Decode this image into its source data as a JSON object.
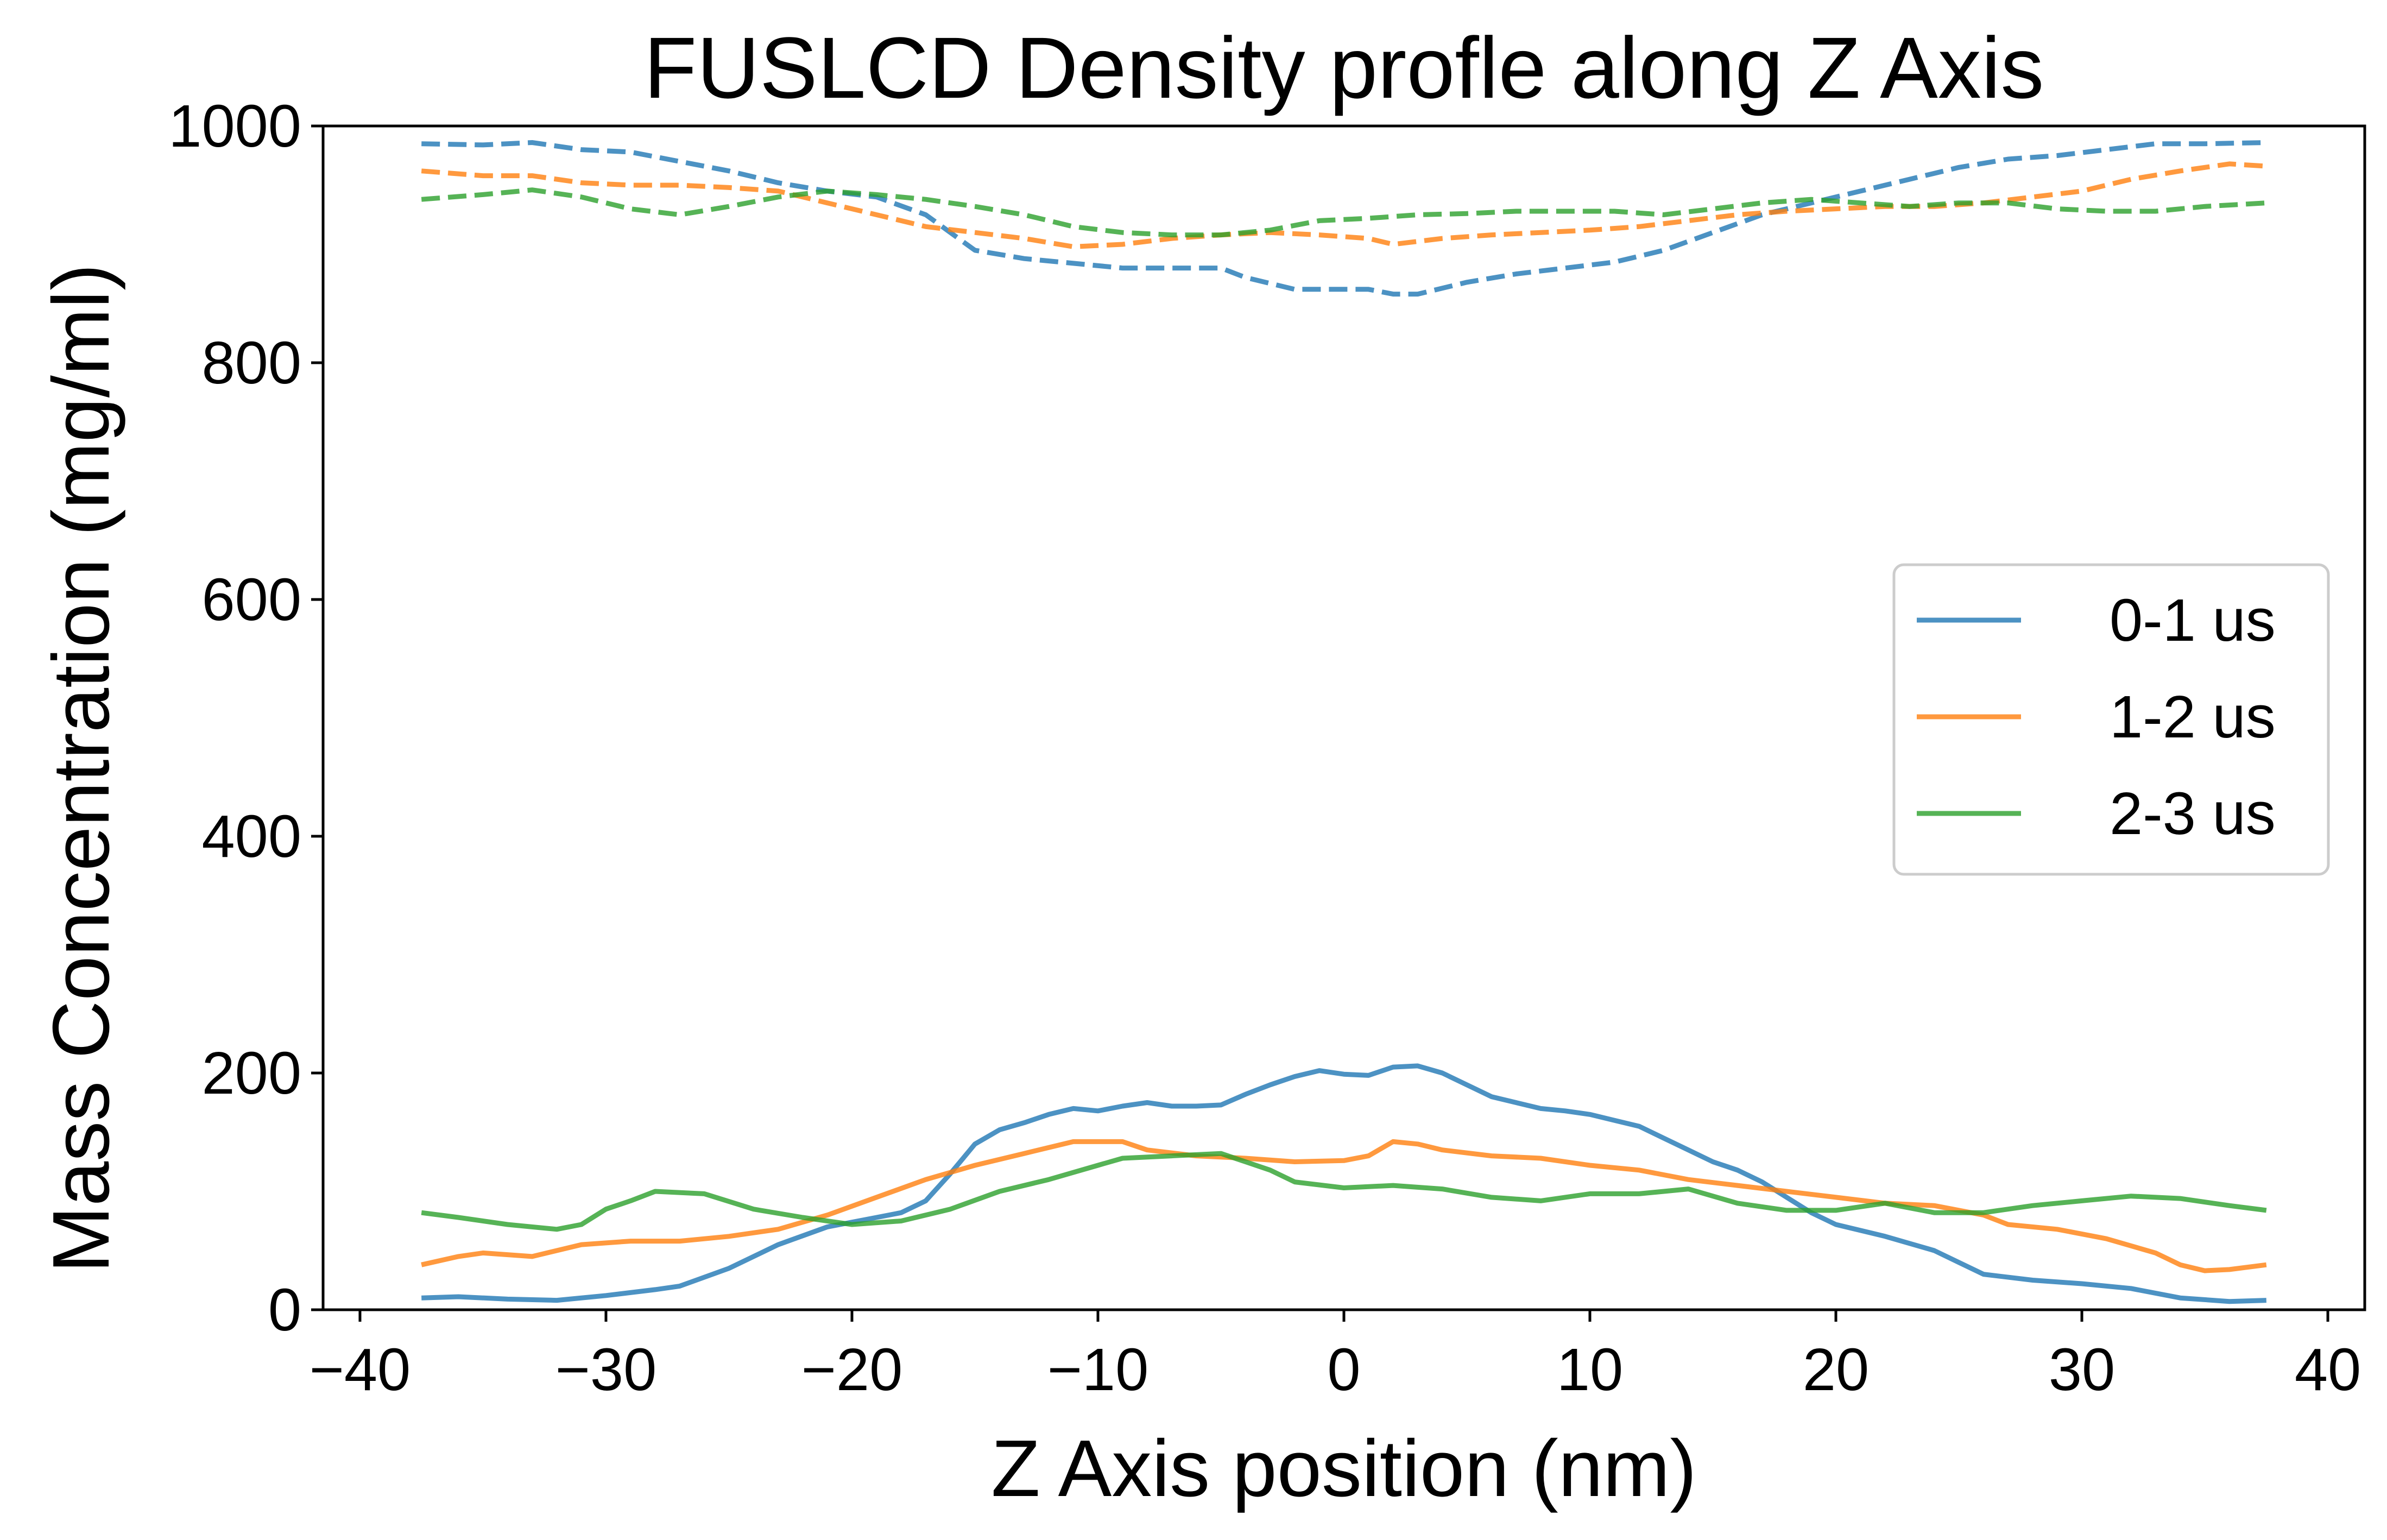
{
  "chart_data": {
    "type": "line",
    "title": "FUSLCD Density profle along Z Axis",
    "xlabel": "Z Axis position (nm)",
    "ylabel": "Mass Concentration (mg/ml)",
    "xlim": [
      -41.5,
      41.5
    ],
    "ylim": [
      0,
      1000
    ],
    "xticks": [
      -40,
      -30,
      -20,
      -10,
      0,
      10,
      20,
      30,
      40
    ],
    "yticks": [
      0,
      200,
      400,
      600,
      800,
      1000
    ],
    "grid": false,
    "legend": {
      "position": "center-right",
      "entries": [
        {
          "label": "0-1 us",
          "color": "#1f77b4"
        },
        {
          "label": "1-2 us",
          "color": "#ff7f0e"
        },
        {
          "label": "2-3 us",
          "color": "#2ca02c"
        }
      ]
    },
    "series": [
      {
        "name": "0-1 us",
        "style": "solid",
        "color": "#1f77b4",
        "points": [
          [
            -37.5,
            10
          ],
          [
            -36,
            11
          ],
          [
            -34,
            9
          ],
          [
            -32,
            8
          ],
          [
            -30,
            12
          ],
          [
            -28,
            17
          ],
          [
            -27,
            20
          ],
          [
            -25,
            35
          ],
          [
            -23,
            55
          ],
          [
            -21,
            70
          ],
          [
            -19,
            78
          ],
          [
            -18,
            82
          ],
          [
            -17,
            92
          ],
          [
            -16,
            115
          ],
          [
            -15,
            140
          ],
          [
            -14,
            152
          ],
          [
            -13,
            158
          ],
          [
            -12,
            165
          ],
          [
            -11,
            170
          ],
          [
            -10,
            168
          ],
          [
            -9,
            172
          ],
          [
            -8,
            175
          ],
          [
            -7,
            172
          ],
          [
            -6,
            172
          ],
          [
            -5,
            173
          ],
          [
            -4,
            182
          ],
          [
            -3,
            190
          ],
          [
            -2,
            197
          ],
          [
            -1,
            202
          ],
          [
            0,
            199
          ],
          [
            1,
            198
          ],
          [
            2,
            205
          ],
          [
            3,
            206
          ],
          [
            4,
            200
          ],
          [
            5,
            190
          ],
          [
            6,
            180
          ],
          [
            7,
            175
          ],
          [
            8,
            170
          ],
          [
            9,
            168
          ],
          [
            10,
            165
          ],
          [
            11,
            160
          ],
          [
            12,
            155
          ],
          [
            13,
            145
          ],
          [
            14,
            135
          ],
          [
            15,
            125
          ],
          [
            16,
            118
          ],
          [
            17,
            108
          ],
          [
            18,
            95
          ],
          [
            19,
            82
          ],
          [
            20,
            72
          ],
          [
            22,
            62
          ],
          [
            24,
            50
          ],
          [
            25,
            40
          ],
          [
            26,
            30
          ],
          [
            28,
            25
          ],
          [
            30,
            22
          ],
          [
            32,
            18
          ],
          [
            34,
            10
          ],
          [
            36,
            7
          ],
          [
            37.5,
            8
          ]
        ]
      },
      {
        "name": "1-2 us",
        "style": "solid",
        "color": "#ff7f0e",
        "points": [
          [
            -37.5,
            38
          ],
          [
            -36,
            45
          ],
          [
            -35,
            48
          ],
          [
            -33,
            45
          ],
          [
            -31,
            55
          ],
          [
            -29,
            58
          ],
          [
            -27,
            58
          ],
          [
            -25,
            62
          ],
          [
            -23,
            68
          ],
          [
            -21,
            80
          ],
          [
            -19,
            95
          ],
          [
            -17,
            110
          ],
          [
            -15,
            122
          ],
          [
            -13,
            132
          ],
          [
            -11,
            142
          ],
          [
            -9,
            142
          ],
          [
            -8,
            135
          ],
          [
            -6,
            130
          ],
          [
            -4,
            128
          ],
          [
            -2,
            125
          ],
          [
            0,
            126
          ],
          [
            1,
            130
          ],
          [
            2,
            142
          ],
          [
            3,
            140
          ],
          [
            4,
            135
          ],
          [
            6,
            130
          ],
          [
            8,
            128
          ],
          [
            10,
            122
          ],
          [
            12,
            118
          ],
          [
            14,
            110
          ],
          [
            16,
            105
          ],
          [
            18,
            100
          ],
          [
            20,
            95
          ],
          [
            22,
            90
          ],
          [
            24,
            88
          ],
          [
            26,
            80
          ],
          [
            27,
            72
          ],
          [
            29,
            68
          ],
          [
            31,
            60
          ],
          [
            33,
            48
          ],
          [
            34,
            38
          ],
          [
            35,
            33
          ],
          [
            36,
            34
          ],
          [
            37.5,
            38
          ]
        ]
      },
      {
        "name": "2-3 us",
        "style": "solid",
        "color": "#2ca02c",
        "points": [
          [
            -37.5,
            82
          ],
          [
            -36,
            78
          ],
          [
            -34,
            72
          ],
          [
            -32,
            68
          ],
          [
            -31,
            72
          ],
          [
            -30,
            85
          ],
          [
            -29,
            92
          ],
          [
            -28,
            100
          ],
          [
            -26,
            98
          ],
          [
            -24,
            85
          ],
          [
            -22,
            78
          ],
          [
            -20,
            72
          ],
          [
            -18,
            75
          ],
          [
            -16,
            85
          ],
          [
            -14,
            100
          ],
          [
            -12,
            110
          ],
          [
            -10,
            122
          ],
          [
            -9,
            128
          ],
          [
            -7,
            130
          ],
          [
            -5,
            132
          ],
          [
            -4,
            125
          ],
          [
            -3,
            118
          ],
          [
            -2,
            108
          ],
          [
            0,
            103
          ],
          [
            2,
            105
          ],
          [
            4,
            102
          ],
          [
            6,
            95
          ],
          [
            8,
            92
          ],
          [
            10,
            98
          ],
          [
            12,
            98
          ],
          [
            14,
            102
          ],
          [
            16,
            90
          ],
          [
            18,
            84
          ],
          [
            20,
            84
          ],
          [
            22,
            90
          ],
          [
            24,
            82
          ],
          [
            26,
            82
          ],
          [
            28,
            88
          ],
          [
            30,
            92
          ],
          [
            32,
            96
          ],
          [
            34,
            94
          ],
          [
            36,
            88
          ],
          [
            37.5,
            84
          ]
        ]
      },
      {
        "name": "",
        "style": "dashed",
        "color": "#1f77b4",
        "points": [
          [
            -37.5,
            985
          ],
          [
            -35,
            984
          ],
          [
            -33,
            986
          ],
          [
            -31,
            980
          ],
          [
            -29,
            978
          ],
          [
            -27,
            970
          ],
          [
            -25,
            962
          ],
          [
            -23,
            952
          ],
          [
            -21,
            945
          ],
          [
            -19,
            940
          ],
          [
            -17,
            925
          ],
          [
            -15,
            895
          ],
          [
            -13,
            888
          ],
          [
            -11,
            884
          ],
          [
            -9,
            880
          ],
          [
            -7,
            880
          ],
          [
            -5,
            880
          ],
          [
            -4,
            872
          ],
          [
            -2,
            862
          ],
          [
            0,
            862
          ],
          [
            1,
            862
          ],
          [
            2,
            858
          ],
          [
            3,
            858
          ],
          [
            5,
            868
          ],
          [
            7,
            875
          ],
          [
            9,
            880
          ],
          [
            11,
            885
          ],
          [
            13,
            895
          ],
          [
            15,
            910
          ],
          [
            17,
            925
          ],
          [
            19,
            935
          ],
          [
            21,
            945
          ],
          [
            23,
            955
          ],
          [
            25,
            965
          ],
          [
            27,
            972
          ],
          [
            29,
            975
          ],
          [
            31,
            980
          ],
          [
            33,
            985
          ],
          [
            35,
            985
          ],
          [
            37.5,
            986
          ]
        ]
      },
      {
        "name": "",
        "style": "dashed",
        "color": "#ff7f0e",
        "points": [
          [
            -37.5,
            962
          ],
          [
            -35,
            958
          ],
          [
            -33,
            958
          ],
          [
            -31,
            952
          ],
          [
            -29,
            950
          ],
          [
            -27,
            950
          ],
          [
            -25,
            948
          ],
          [
            -23,
            945
          ],
          [
            -21,
            935
          ],
          [
            -19,
            925
          ],
          [
            -17,
            915
          ],
          [
            -15,
            910
          ],
          [
            -13,
            905
          ],
          [
            -11,
            898
          ],
          [
            -9,
            900
          ],
          [
            -7,
            905
          ],
          [
            -5,
            908
          ],
          [
            -3,
            910
          ],
          [
            -1,
            908
          ],
          [
            1,
            905
          ],
          [
            2,
            900
          ],
          [
            4,
            905
          ],
          [
            6,
            908
          ],
          [
            8,
            910
          ],
          [
            10,
            912
          ],
          [
            12,
            915
          ],
          [
            14,
            920
          ],
          [
            16,
            925
          ],
          [
            18,
            928
          ],
          [
            20,
            930
          ],
          [
            22,
            932
          ],
          [
            24,
            932
          ],
          [
            26,
            935
          ],
          [
            28,
            940
          ],
          [
            30,
            945
          ],
          [
            32,
            955
          ],
          [
            34,
            962
          ],
          [
            36,
            968
          ],
          [
            37.5,
            966
          ]
        ]
      },
      {
        "name": "",
        "style": "dashed",
        "color": "#2ca02c",
        "points": [
          [
            -37.5,
            938
          ],
          [
            -35,
            942
          ],
          [
            -33,
            946
          ],
          [
            -31,
            940
          ],
          [
            -29,
            930
          ],
          [
            -27,
            925
          ],
          [
            -25,
            932
          ],
          [
            -23,
            940
          ],
          [
            -21,
            945
          ],
          [
            -19,
            942
          ],
          [
            -17,
            938
          ],
          [
            -15,
            932
          ],
          [
            -13,
            925
          ],
          [
            -11,
            915
          ],
          [
            -9,
            910
          ],
          [
            -7,
            908
          ],
          [
            -5,
            908
          ],
          [
            -3,
            912
          ],
          [
            -1,
            920
          ],
          [
            1,
            922
          ],
          [
            3,
            925
          ],
          [
            5,
            926
          ],
          [
            7,
            928
          ],
          [
            9,
            928
          ],
          [
            11,
            928
          ],
          [
            13,
            925
          ],
          [
            15,
            930
          ],
          [
            17,
            935
          ],
          [
            19,
            938
          ],
          [
            21,
            935
          ],
          [
            23,
            932
          ],
          [
            25,
            935
          ],
          [
            27,
            935
          ],
          [
            29,
            930
          ],
          [
            31,
            928
          ],
          [
            33,
            928
          ],
          [
            35,
            932
          ],
          [
            37.5,
            935
          ]
        ]
      }
    ]
  }
}
